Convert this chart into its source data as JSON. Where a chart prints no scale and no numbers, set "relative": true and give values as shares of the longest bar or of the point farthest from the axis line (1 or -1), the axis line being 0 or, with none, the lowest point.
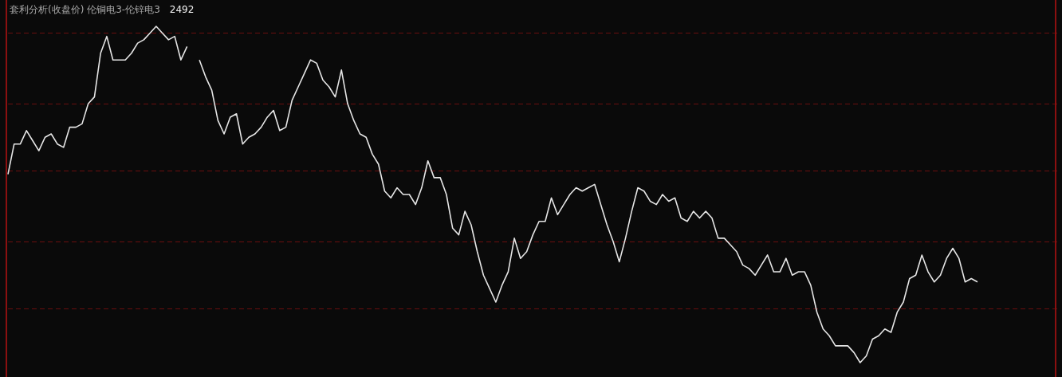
{
  "chart_data": {
    "type": "line",
    "title": "套利分析(收盘价) 伦铜电3-伦锌电3",
    "subtitle": "2492",
    "relative": true,
    "ref_lines": [
      {
        "axis": "y",
        "value": 0.98,
        "color": "#6a0e0e",
        "line_style": "dashed"
      },
      {
        "axis": "y",
        "value": 0.77,
        "color": "#6a0e0e",
        "line_style": "dashed"
      },
      {
        "axis": "y",
        "value": 0.57,
        "color": "#6a0e0e",
        "line_style": "dashed"
      },
      {
        "axis": "y",
        "value": 0.36,
        "color": "#6a0e0e",
        "line_style": "dashed"
      },
      {
        "axis": "y",
        "value": 0.16,
        "color": "#6a0e0e",
        "line_style": "dashed"
      }
    ],
    "categories": [
      null,
      null,
      null,
      null,
      null,
      null,
      null,
      null,
      null,
      null,
      null,
      null,
      null,
      null,
      null,
      null,
      null,
      null,
      null,
      null,
      null,
      null,
      null,
      null,
      null,
      null,
      null,
      null,
      null,
      null,
      null,
      null,
      null,
      null,
      null,
      null,
      null,
      null,
      null,
      null,
      null,
      null,
      null,
      null,
      null,
      null,
      null,
      null,
      null,
      null,
      null,
      null,
      null,
      null,
      null,
      null,
      null,
      null,
      null,
      null,
      null,
      null,
      null,
      null,
      null,
      null,
      null,
      null,
      null,
      null,
      null,
      null,
      null,
      null,
      null,
      null,
      null,
      null,
      null,
      null,
      null,
      null,
      null,
      null,
      null,
      null,
      null,
      null,
      null,
      null,
      null,
      null,
      null,
      null,
      null,
      null,
      null,
      null,
      null,
      null,
      null,
      null,
      null,
      null,
      null,
      null,
      null,
      null,
      null,
      null,
      null,
      null,
      null,
      null,
      null,
      null,
      null,
      null,
      null,
      null,
      null,
      null,
      null,
      null,
      null,
      null,
      null,
      null,
      null,
      null,
      null,
      null,
      null,
      null,
      null,
      null,
      null,
      null,
      null,
      null,
      null,
      null,
      null,
      null,
      null,
      null,
      null,
      null,
      null,
      null,
      null,
      null,
      null,
      null,
      null,
      null,
      null,
      null
    ],
    "series": [
      {
        "color": "#e6e6e6",
        "values": [
          0.56,
          0.65,
          0.65,
          0.69,
          0.66,
          0.63,
          0.67,
          0.68,
          0.65,
          0.64,
          0.7,
          0.7,
          0.71,
          0.77,
          0.79,
          0.92,
          0.97,
          0.9,
          0.9,
          0.9,
          0.92,
          0.95,
          0.96,
          0.98,
          1,
          0.98,
          0.96,
          0.97,
          0.9,
          0.94,
          null,
          null,
          null,
          null,
          null,
          null,
          null,
          null,
          null,
          null,
          null,
          null,
          null,
          null,
          null,
          null,
          null,
          null,
          null,
          null,
          null,
          null,
          null,
          null,
          null,
          null,
          null,
          null,
          null,
          null,
          null,
          null,
          null,
          null,
          null,
          null,
          null,
          null,
          null,
          null,
          null,
          null,
          null,
          null,
          null,
          null,
          null,
          null,
          null,
          null,
          null,
          null,
          null,
          null,
          null,
          null,
          null,
          null,
          null,
          null,
          null,
          null,
          null,
          null,
          null,
          null,
          null,
          null,
          null,
          null,
          null,
          null,
          null,
          null,
          null,
          null,
          null,
          null,
          null,
          null,
          null,
          null,
          null,
          null,
          null,
          null,
          null,
          null,
          null,
          null,
          null,
          null,
          null,
          null,
          null,
          null,
          null,
          null,
          null,
          null,
          null,
          null,
          null,
          null,
          null,
          null,
          null,
          null,
          null,
          null,
          null,
          null,
          null,
          null,
          null,
          null,
          null,
          null,
          null,
          null,
          null,
          null,
          null,
          null,
          null,
          null,
          null,
          null
        ]
      },
      {
        "color": "#e6e6e6",
        "values": [
          null,
          null,
          null,
          null,
          null,
          null,
          null,
          null,
          null,
          null,
          null,
          null,
          null,
          null,
          null,
          null,
          null,
          null,
          null,
          null,
          null,
          null,
          null,
          null,
          null,
          null,
          null,
          null,
          null,
          null,
          null,
          0.9,
          0.85,
          0.81,
          0.72,
          0.68,
          0.73,
          0.74,
          0.65,
          0.67,
          0.68,
          0.7,
          0.73,
          0.75,
          0.69,
          0.7,
          0.78,
          0.82,
          0.86,
          0.9,
          0.89,
          0.84,
          0.82,
          0.79,
          0.87,
          0.77,
          0.72,
          0.68,
          0.67,
          0.62,
          0.59,
          0.51,
          0.49,
          0.52,
          0.5,
          0.5,
          0.47,
          0.52,
          0.6,
          0.55,
          0.55,
          0.5,
          0.4,
          0.38,
          0.45,
          0.41,
          0.33,
          0.26,
          0.22,
          0.18,
          0.23,
          0.27,
          0.37,
          0.31,
          0.33,
          0.38,
          0.42,
          0.42,
          0.49,
          0.44,
          0.47,
          0.5,
          0.52,
          0.51,
          0.52,
          0.53,
          0.47,
          0.41,
          0.36,
          0.3,
          0.37,
          0.45,
          0.52,
          0.51,
          0.48,
          0.47,
          0.5,
          0.48,
          0.49,
          0.43,
          0.42,
          0.45,
          0.43,
          0.45,
          0.43,
          0.37,
          0.37,
          0.35,
          0.33,
          0.29,
          0.28,
          0.26,
          0.29,
          0.32,
          0.27,
          0.27,
          0.31,
          0.26,
          0.27,
          0.27,
          0.23,
          0.15,
          0.1,
          0.08,
          0.05,
          0.05,
          0.05,
          0.03,
          0,
          0.02,
          0.07,
          0.08,
          0.1,
          0.09,
          0.15,
          0.18,
          0.25,
          0.26,
          0.32,
          0.27,
          0.24,
          0.26,
          0.31,
          0.34,
          0.31,
          0.24,
          0.25,
          0.24
        ]
      }
    ]
  }
}
